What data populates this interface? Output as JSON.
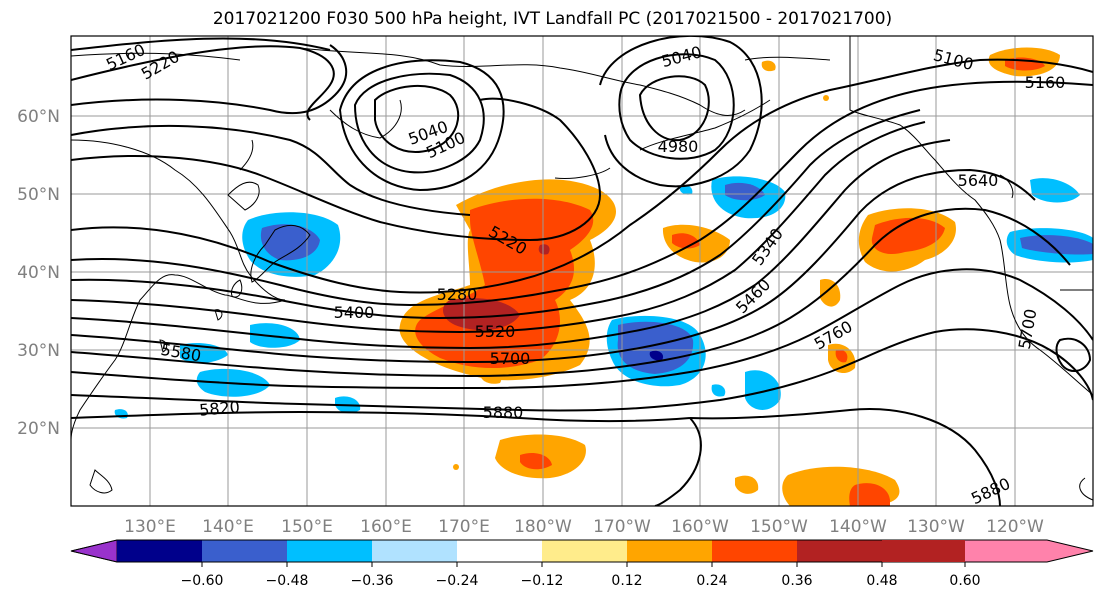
{
  "title": "2017021200 F030 500 hPa height, IVT Landfall PC (2017021500 - 2017021700)",
  "map": {
    "lat_labels": [
      "60°N",
      "50°N",
      "40°N",
      "30°N",
      "20°N"
    ],
    "lon_labels": [
      "130°E",
      "140°E",
      "150°E",
      "160°E",
      "170°E",
      "180°W",
      "170°W",
      "160°W",
      "150°W",
      "140°W",
      "130°W",
      "120°W"
    ],
    "contour_labels": [
      "5160",
      "5220",
      "5040",
      "5100",
      "5040",
      "5100",
      "4980",
      "5160",
      "5640",
      "5220",
      "5280",
      "5400",
      "5520",
      "5580",
      "5700",
      "5820",
      "5880",
      "5340",
      "5460",
      "5760",
      "5700",
      "5880"
    ]
  },
  "colorbar": {
    "tick_labels": [
      "−0.60",
      "−0.48",
      "−0.36",
      "−0.24",
      "−0.12",
      "0.12",
      "0.24",
      "0.36",
      "0.48",
      "0.60"
    ],
    "colors": [
      "#9932cc",
      "#00008b",
      "#3a5fcd",
      "#00bfff",
      "#b0e2ff",
      "#ffffff",
      "#ffec8b",
      "#ffa500",
      "#ff4500",
      "#b22222",
      "#ff82ab"
    ]
  }
}
